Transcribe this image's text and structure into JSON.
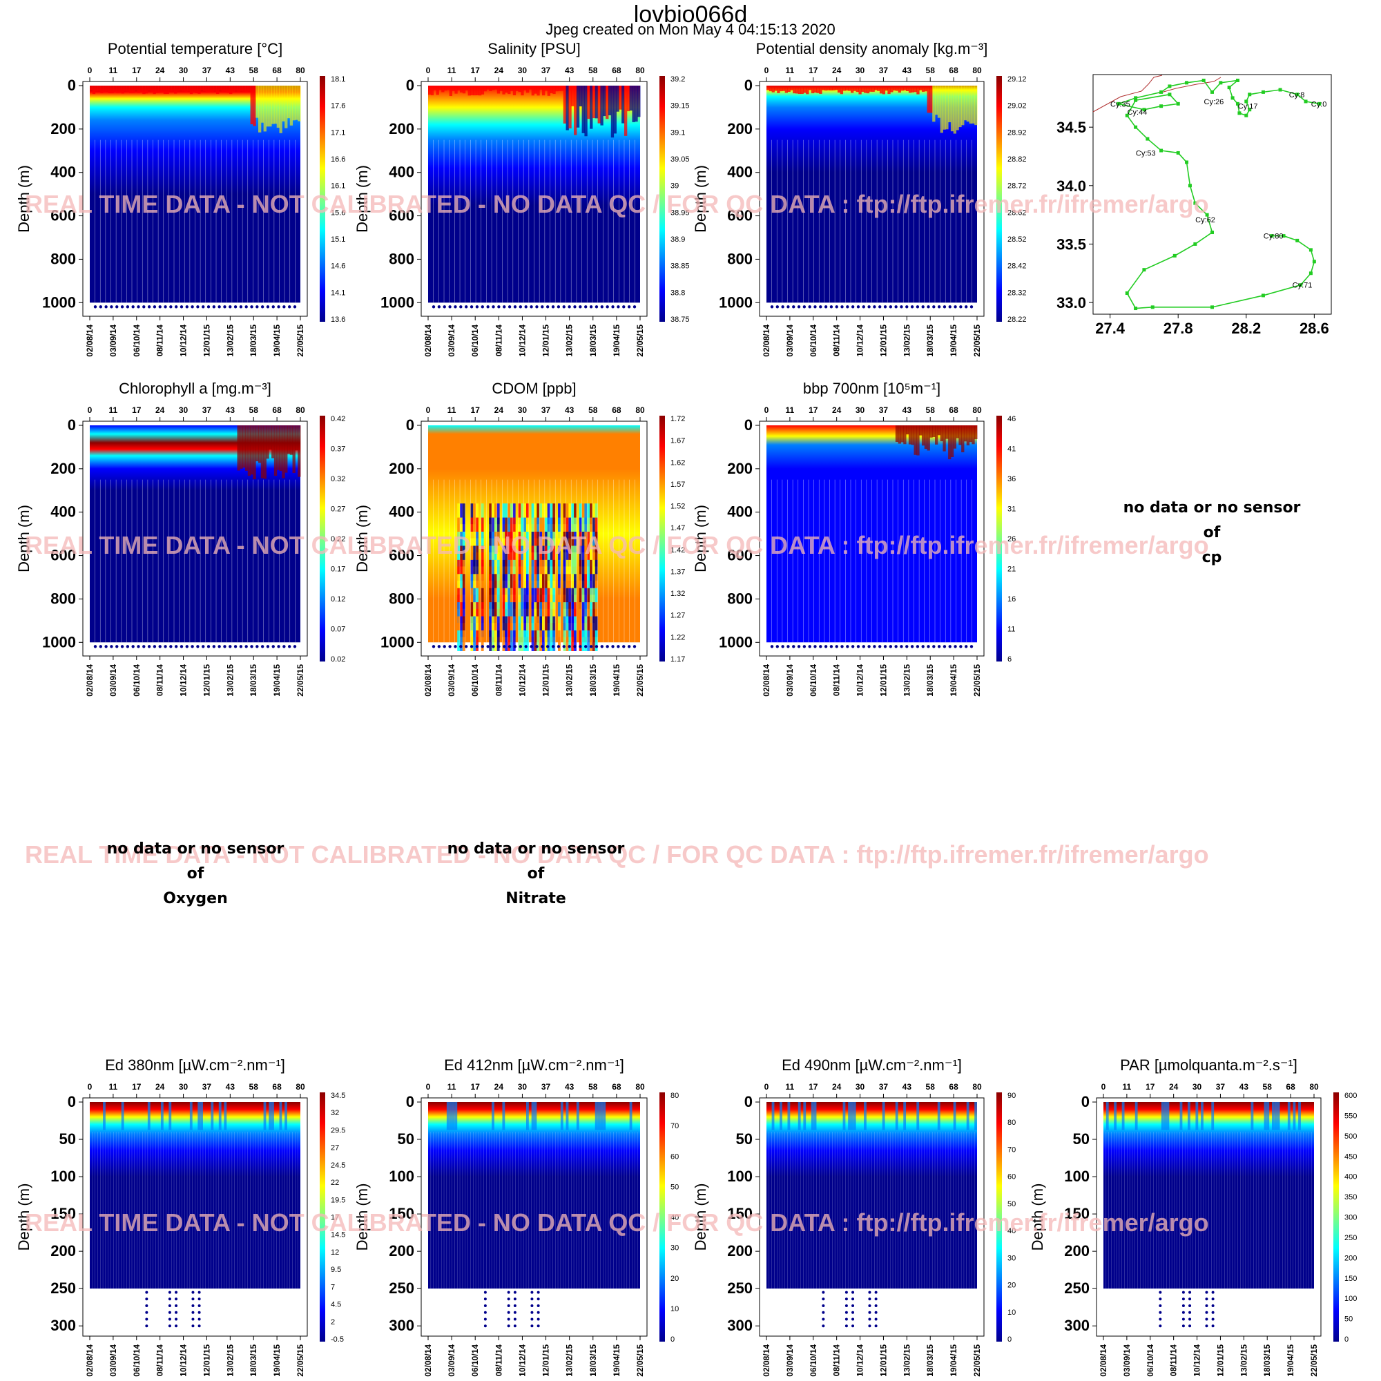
{
  "header": {
    "title": "lovbio066d",
    "subtitle": "Jpeg created on  Mon May  4 04:15:13 2020"
  },
  "watermark": "REAL TIME DATA - NOT CALIBRATED - NO DATA QC   /  FOR QC DATA : ftp://ftp.ifremer.fr/ifremer/argo",
  "colors": {
    "scale": [
      "#00008B",
      "#0000FF",
      "#0080FF",
      "#00FFFF",
      "#80FF80",
      "#FFFF00",
      "#FF8000",
      "#FF0000",
      "#8B0000"
    ],
    "watermark": "#F5B8B8",
    "track": "#22CC22",
    "coast": "#B03030"
  },
  "axes_common": {
    "cycles": [
      "0",
      "11",
      "17",
      "24",
      "30",
      "37",
      "43",
      "58",
      "68",
      "80"
    ],
    "dates": [
      "02/08/14",
      "03/09/14",
      "06/10/14",
      "08/11/14",
      "10/12/14",
      "12/01/15",
      "13/02/15",
      "18/03/15",
      "19/04/15",
      "22/05/15"
    ],
    "ylabel": "Depth (m)",
    "depth_ticks_deep": [
      "0",
      "200",
      "400",
      "600",
      "800",
      "1000"
    ],
    "depth_ticks_shallow": [
      "0",
      "50",
      "100",
      "150",
      "200",
      "250",
      "300"
    ]
  },
  "chart_data": [
    {
      "type": "heatmap",
      "title": "Potential temperature [°C]",
      "ylim": [
        1050,
        0
      ],
      "colorbar": [
        "18.1",
        "17.6",
        "17.1",
        "16.6",
        "16.1",
        "15.6",
        "15.1",
        "14.6",
        "14.1",
        "13.6"
      ]
    },
    {
      "type": "heatmap",
      "title": "Salinity [PSU]",
      "ylim": [
        1050,
        0
      ],
      "colorbar": [
        "39.2",
        "39.15",
        "39.1",
        "39.05",
        "39",
        "38.95",
        "38.9",
        "38.85",
        "38.8",
        "38.75"
      ]
    },
    {
      "type": "heatmap",
      "title": "Potential density anomaly [kg.m⁻³]",
      "ylim": [
        1050,
        0
      ],
      "colorbar": [
        "29.12",
        "29.02",
        "28.92",
        "28.82",
        "28.72",
        "28.62",
        "28.52",
        "28.42",
        "28.32",
        "28.22"
      ]
    },
    {
      "type": "scatter",
      "title": "",
      "xlim": [
        27.3,
        28.7
      ],
      "ylim": [
        32.9,
        34.95
      ],
      "xticks": [
        "27.4",
        "27.8",
        "28.2",
        "28.6"
      ],
      "yticks": [
        "33.0",
        "33.5",
        "34.0",
        "34.5"
      ],
      "labels": [
        {
          "text": "Cy:0",
          "x": 28.63,
          "y": 34.7
        },
        {
          "text": "Cy:8",
          "x": 28.5,
          "y": 34.78
        },
        {
          "text": "Cy:17",
          "x": 28.2,
          "y": 34.68
        },
        {
          "text": "Cy:26",
          "x": 28.0,
          "y": 34.72
        },
        {
          "text": "Cy:35",
          "x": 27.45,
          "y": 34.7
        },
        {
          "text": "Cy:44",
          "x": 27.55,
          "y": 34.63
        },
        {
          "text": "Cy:53",
          "x": 27.6,
          "y": 34.28
        },
        {
          "text": "Cy:62",
          "x": 27.95,
          "y": 33.71
        },
        {
          "text": "Cy:80",
          "x": 28.35,
          "y": 33.57
        },
        {
          "text": "Cy:71",
          "x": 28.52,
          "y": 33.15
        }
      ],
      "track": [
        [
          28.63,
          34.7
        ],
        [
          28.55,
          34.72
        ],
        [
          28.5,
          34.78
        ],
        [
          28.4,
          34.82
        ],
        [
          28.3,
          34.8
        ],
        [
          28.22,
          34.78
        ],
        [
          28.2,
          34.72
        ],
        [
          28.22,
          34.65
        ],
        [
          28.2,
          34.6
        ],
        [
          28.16,
          34.62
        ],
        [
          28.15,
          34.7
        ],
        [
          28.12,
          34.75
        ],
        [
          28.1,
          34.84
        ],
        [
          28.15,
          34.9
        ],
        [
          28.05,
          34.88
        ],
        [
          28.0,
          34.8
        ],
        [
          27.95,
          34.9
        ],
        [
          27.85,
          34.88
        ],
        [
          27.75,
          34.85
        ],
        [
          27.7,
          34.8
        ],
        [
          27.55,
          34.75
        ],
        [
          27.45,
          34.7
        ],
        [
          27.6,
          34.65
        ],
        [
          27.7,
          34.68
        ],
        [
          27.8,
          34.7
        ],
        [
          27.75,
          34.78
        ],
        [
          27.55,
          34.73
        ],
        [
          27.5,
          34.6
        ],
        [
          27.55,
          34.5
        ],
        [
          27.62,
          34.4
        ],
        [
          27.7,
          34.3
        ],
        [
          27.8,
          34.28
        ],
        [
          27.85,
          34.2
        ],
        [
          27.87,
          34.0
        ],
        [
          27.9,
          33.85
        ],
        [
          27.97,
          33.75
        ],
        [
          28.0,
          33.6
        ],
        [
          27.9,
          33.5
        ],
        [
          27.78,
          33.4
        ],
        [
          27.6,
          33.28
        ],
        [
          27.5,
          33.08
        ],
        [
          27.55,
          32.95
        ],
        [
          27.65,
          32.96
        ],
        [
          28.0,
          32.96
        ],
        [
          28.3,
          33.06
        ],
        [
          28.52,
          33.15
        ],
        [
          28.58,
          33.25
        ],
        [
          28.6,
          33.35
        ],
        [
          28.58,
          33.45
        ],
        [
          28.5,
          33.53
        ],
        [
          28.42,
          33.57
        ],
        [
          28.35,
          33.57
        ]
      ]
    },
    {
      "type": "heatmap",
      "title": "Chlorophyll a [mg.m⁻³]",
      "ylim": [
        1050,
        0
      ],
      "colorbar": [
        "0.42",
        "0.37",
        "0.32",
        "0.27",
        "0.22",
        "0.17",
        "0.12",
        "0.07",
        "0.02"
      ]
    },
    {
      "type": "heatmap",
      "title": "CDOM  [ppb]",
      "ylim": [
        1050,
        0
      ],
      "colorbar": [
        "1.72",
        "1.67",
        "1.62",
        "1.57",
        "1.52",
        "1.47",
        "1.42",
        "1.37",
        "1.32",
        "1.27",
        "1.22",
        "1.17"
      ]
    },
    {
      "type": "heatmap",
      "title": "bbp 700nm [10⁵m⁻¹]",
      "ylim": [
        1050,
        0
      ],
      "colorbar": [
        "46",
        "41",
        "36",
        "31",
        "26",
        "21",
        "16",
        "11",
        "6"
      ]
    },
    {
      "type": "heatmap",
      "title": "Ed 380nm [µW.cm⁻².nm⁻¹]",
      "ylim": [
        310,
        0
      ],
      "colorbar": [
        "34.5",
        "32",
        "29.5",
        "27",
        "24.5",
        "22",
        "19.5",
        "17",
        "14.5",
        "12",
        "9.5",
        "7",
        "4.5",
        "2",
        "-0.5"
      ]
    },
    {
      "type": "heatmap",
      "title": "Ed 412nm [µW.cm⁻².nm⁻¹]",
      "ylim": [
        310,
        0
      ],
      "colorbar": [
        "80",
        "70",
        "60",
        "50",
        "40",
        "30",
        "20",
        "10",
        "0"
      ]
    },
    {
      "type": "heatmap",
      "title": "Ed 490nm [µW.cm⁻².nm⁻¹]",
      "ylim": [
        310,
        0
      ],
      "colorbar": [
        "90",
        "80",
        "70",
        "60",
        "50",
        "40",
        "30",
        "20",
        "10",
        "0"
      ]
    },
    {
      "type": "heatmap",
      "title": "PAR [µmolquanta.m⁻².s⁻¹]",
      "ylim": [
        310,
        0
      ],
      "colorbar": [
        "600",
        "550",
        "500",
        "450",
        "400",
        "350",
        "300",
        "250",
        "200",
        "150",
        "100",
        "50",
        "0"
      ]
    }
  ],
  "nodata": [
    {
      "line1": "no data or no sensor",
      "line2": "of",
      "line3": "cp"
    },
    {
      "line1": "no data or no sensor",
      "line2": "of",
      "line3": "Oxygen"
    },
    {
      "line1": "no data or no sensor",
      "line2": "of",
      "line3": "Nitrate"
    }
  ]
}
